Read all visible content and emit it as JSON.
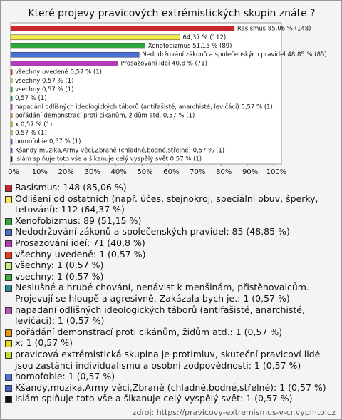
{
  "chart_data": {
    "type": "bar",
    "orientation": "horizontal",
    "title": "Které projevy pravicových extrémistických skupin znáte ?",
    "series": [
      {
        "values": [
          85.06,
          64.37,
          51.15,
          48.85,
          40.8,
          0.57,
          0.57,
          0.57,
          0.57,
          0.57,
          0.57,
          0.57,
          0.57,
          0.57,
          0.57,
          0.57
        ],
        "value_labels": [
          "Rasismus 85,06 % (148)",
          "64,37 % (112)",
          "Xenofobizmus 51,15 % (89)",
          "Nedodržování zákonů a společenských pravidel 48,85 % (85)",
          "Prosazování idei 40,8 % (71)",
          "všechny uvedené 0,57 % (1)",
          "všechny 0,57 % (1)",
          "vsechny 0,57 % (1)",
          "0,57 % (1)",
          "napadání odlišných ideologických táborů (antifašisté, anarchisté, levičáci) 0,57 % (1)",
          "pořádání demonstrací proti cikánům, židům atd. 0,57 % (1)",
          "x 0,57 % (1)",
          "0,57 % (1)",
          "homofobie 0,57 % (1)",
          "Kšandy,muzika,Army věci,Zbraně (chladné,bodné,střelné) 0,57 % (1)",
          "Islám splňuje toto vše a šikanuje celý vyspělý svět 0,57 % (1)"
        ],
        "colors": [
          "#c8282d",
          "#f5e84a",
          "#2ea63a",
          "#4a6fd8",
          "#b23cb6",
          "#e0401c",
          "#c8ec7a",
          "#36b040",
          "#2a8a8c",
          "#b458b8",
          "#e8921e",
          "#e8d424",
          "#c4dc3c",
          "#5272d4",
          "#3f62c4",
          "#111111"
        ]
      }
    ],
    "legend": [
      "Rasismus: 148 (85,06 %)",
      "Odlišení od ostatních (např. účes, stejnokroj, speciální obuv, šperky, tetování): 112 (64,37 %)",
      "Xenofobizmus: 89 (51,15 %)",
      "Nedodržování zákonů a společenských pravidel: 85 (48,85 %)",
      "Prosazování ideí: 71 (40,8 %)",
      "všechny uvedené: 1 (0,57 %)",
      "všechny: 1 (0,57 %)",
      "vsechny: 1 (0,57 %)",
      "Neslušné  a hrubé chování, nenávist k menšinám, přistěhovalcům. Projevují se hloupě a agresivně. Zakázala bych je.: 1 (0,57 %)",
      "napadání odlišných ideologických táborů (antifašisté, anarchisté, levičáci): 1 (0,57 %)",
      "pořádání demonstrací proti cikánům, židům atd.: 1 (0,57 %)",
      "x: 1 (0,57 %)",
      "pravicová extrémistická skupina je protimluv, skuteční pravicoví lidé jsou zastánci individualismu a osobní zodpovědnosti: 1 (0,57 %)",
      "homofobie: 1 (0,57 %)",
      "Kšandy,muzika,Army věci,Zbraně (chladné,bodné,střelné): 1 (0,57 %)",
      "Islám splňuje toto vše a šikanuje celý vyspělý svět: 1 (0,57 %)"
    ],
    "xlim": [
      0,
      100
    ],
    "xticks": [
      {
        "value": 0,
        "label": "0%"
      },
      {
        "value": 10,
        "label": "10%"
      },
      {
        "value": 20,
        "label": "20%"
      },
      {
        "value": 30,
        "label": "30%"
      },
      {
        "value": 40,
        "label": "40%"
      },
      {
        "value": 50,
        "label": "50%"
      },
      {
        "value": 60,
        "label": "60%"
      },
      {
        "value": 70,
        "label": "70%"
      },
      {
        "value": 80,
        "label": "80%"
      },
      {
        "value": 90,
        "label": "90%"
      },
      {
        "value": 100,
        "label": "100%"
      }
    ],
    "source": "zdroj: https://pravicovy-extremismus-v-cr.vyplnto.cz"
  }
}
